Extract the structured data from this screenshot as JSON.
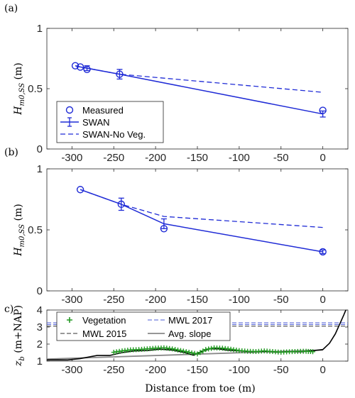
{
  "chart_data": [
    {
      "panel_label": "(a)",
      "type": "line",
      "ylabel": "H_{m0,SS} (m)",
      "xlim": [
        -330,
        30
      ],
      "ylim": [
        0,
        1
      ],
      "xticks": [
        -300,
        -250,
        -200,
        -150,
        -100,
        -50,
        0
      ],
      "yticks": [
        0,
        0.5,
        1
      ],
      "legend": {
        "placement": "bottom-left",
        "entries": [
          "Measured",
          "SWAN",
          "SWAN-No Veg."
        ]
      },
      "series": [
        {
          "name": "Measured",
          "style": "circle",
          "x": [
            -296,
            -290,
            -282,
            -243,
            0
          ],
          "y": [
            0.69,
            0.68,
            0.66,
            0.62,
            0.32
          ]
        },
        {
          "name": "SWAN",
          "style": "solid",
          "x": [
            -296,
            -290,
            -282,
            -243,
            0
          ],
          "y": [
            0.69,
            0.68,
            0.67,
            0.62,
            0.29
          ],
          "error": [
            null,
            null,
            0.02,
            0.04,
            0.025
          ]
        },
        {
          "name": "SWAN-No Veg.",
          "style": "dashed",
          "x": [
            -296,
            -290,
            -282,
            -243,
            0
          ],
          "y": [
            0.69,
            0.68,
            0.67,
            0.62,
            0.47
          ]
        }
      ]
    },
    {
      "panel_label": "(b)",
      "type": "line",
      "ylabel": "H_{m0,SS} (m)",
      "xlim": [
        -330,
        30
      ],
      "ylim": [
        0,
        1
      ],
      "xticks": [
        -300,
        -250,
        -200,
        -150,
        -100,
        -50,
        0
      ],
      "yticks": [
        0,
        0.5,
        1
      ],
      "series": [
        {
          "name": "Measured",
          "style": "circle",
          "x": [
            -290,
            -241,
            -190,
            0
          ],
          "y": [
            0.83,
            0.71,
            0.51,
            0.32
          ]
        },
        {
          "name": "SWAN",
          "style": "solid",
          "x": [
            -290,
            -241,
            -190,
            0
          ],
          "y": [
            0.83,
            0.71,
            0.55,
            0.32
          ],
          "error": [
            null,
            0.05,
            0.04,
            0.015
          ]
        },
        {
          "name": "SWAN-No Veg.",
          "style": "dashed",
          "x": [
            -290,
            -241,
            -190,
            0
          ],
          "y": [
            0.83,
            0.71,
            0.61,
            0.52
          ]
        }
      ]
    },
    {
      "panel_label": "c)",
      "type": "line",
      "ylabel": "z_b (m+NAP)",
      "xlabel": "Distance from toe (m)",
      "xlim": [
        -330,
        30
      ],
      "ylim": [
        1,
        4
      ],
      "xticks": [
        -300,
        -250,
        -200,
        -150,
        -100,
        -50,
        0
      ],
      "yticks": [
        1,
        2,
        3,
        4
      ],
      "legend": {
        "placement": "top",
        "entries": [
          "Vegetation",
          "MWL 2017",
          "MWL 2015",
          "Avg. slope"
        ]
      },
      "series": [
        {
          "name": "bed",
          "style": "solid-black",
          "x": [
            -330,
            -305,
            -290,
            -270,
            -255,
            -240,
            -225,
            -210,
            -195,
            -180,
            -165,
            -155,
            -145,
            -135,
            -125,
            -115,
            -100,
            -85,
            -70,
            -55,
            -40,
            -25,
            -10,
            0,
            8,
            15,
            20,
            25,
            28
          ],
          "y": [
            1.07,
            1.07,
            1.15,
            1.33,
            1.33,
            1.5,
            1.6,
            1.62,
            1.7,
            1.65,
            1.5,
            1.35,
            1.55,
            1.72,
            1.72,
            1.65,
            1.6,
            1.55,
            1.58,
            1.52,
            1.55,
            1.55,
            1.62,
            1.68,
            2.05,
            2.6,
            3.15,
            3.7,
            4.05
          ]
        },
        {
          "name": "Vegetation",
          "style": "plus-green",
          "x": [
            -250,
            -240,
            -230,
            -220,
            -210,
            -200,
            -190,
            -180,
            -170,
            -160,
            -150,
            -140,
            -130,
            -120,
            -110,
            -100,
            -90,
            -80,
            -70,
            -60,
            -50,
            -40,
            -30,
            -20,
            -12
          ],
          "y": [
            1.52,
            1.6,
            1.66,
            1.68,
            1.72,
            1.76,
            1.78,
            1.72,
            1.62,
            1.52,
            1.42,
            1.68,
            1.78,
            1.76,
            1.7,
            1.62,
            1.58,
            1.56,
            1.6,
            1.56,
            1.52,
            1.55,
            1.57,
            1.58,
            1.55
          ]
        },
        {
          "name": "MWL 2017",
          "style": "dashed-blue",
          "x": [
            -330,
            30
          ],
          "y": [
            3.15,
            3.15
          ]
        },
        {
          "name": "MWL 2017",
          "style": "dashed-blue",
          "x": [
            -330,
            30
          ],
          "y": [
            3.25,
            3.25
          ]
        },
        {
          "name": "MWL 2015",
          "style": "dashed-black",
          "x": [
            -330,
            30
          ],
          "y": [
            3.05,
            3.05
          ]
        },
        {
          "name": "Avg. slope",
          "style": "solid-gray",
          "x": [
            -330,
            0
          ],
          "y": [
            1.12,
            1.65
          ]
        }
      ]
    }
  ],
  "colors": {
    "swan": "#1f2bd6",
    "vegetation": "#229922",
    "slope": "#888888",
    "mwl2015": "#333333"
  }
}
